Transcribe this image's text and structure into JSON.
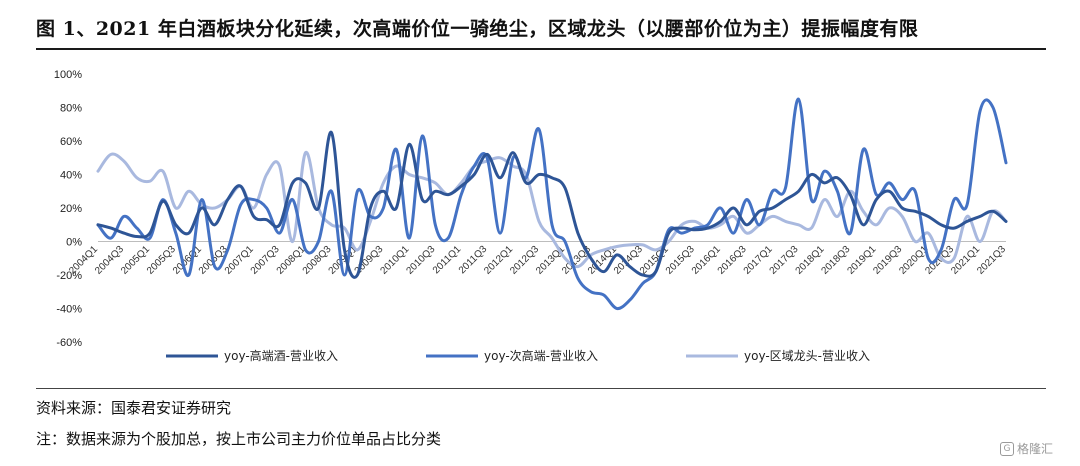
{
  "figure": {
    "title": "图 1、2021 年白酒板块分化延续，次高端价位一骑绝尘，区域龙头（以腰部价位为主）提振幅度有限",
    "source": "资料来源：国泰君安证券研究",
    "note": "注：数据来源为个股加总，按上市公司主力价位单品占比分类",
    "watermark": "格隆汇"
  },
  "chart_data": {
    "type": "line",
    "title": "",
    "xlabel": "",
    "ylabel": "",
    "ylim": [
      -60,
      100
    ],
    "yticks": [
      -60,
      -40,
      -20,
      0,
      20,
      40,
      60,
      80,
      100
    ],
    "ytick_labels": [
      "-60%",
      "-40%",
      "-20%",
      "0%",
      "20%",
      "40%",
      "60%",
      "80%",
      "100%"
    ],
    "grid": false,
    "legend_position": "bottom",
    "x_tick_labels": [
      "2004Q1",
      "2004Q3",
      "2005Q1",
      "2005Q3",
      "2006Q1",
      "2006Q3",
      "2007Q1",
      "2007Q3",
      "2008Q1",
      "2008Q3",
      "2009Q1",
      "2009Q3",
      "2010Q1",
      "2010Q3",
      "2011Q1",
      "2011Q3",
      "2012Q1",
      "2012Q3",
      "2013Q1",
      "2013Q3",
      "2014Q1",
      "2014Q3",
      "2015Q1",
      "2015Q3",
      "2016Q1",
      "2016Q3",
      "2017Q1",
      "2017Q3",
      "2018Q1",
      "2018Q3",
      "2019Q1",
      "2019Q3",
      "2020Q1",
      "2020Q3",
      "2021Q1",
      "2021Q3"
    ],
    "x": [
      "2004Q1",
      "2004Q2",
      "2004Q3",
      "2004Q4",
      "2005Q1",
      "2005Q2",
      "2005Q3",
      "2005Q4",
      "2006Q1",
      "2006Q2",
      "2006Q3",
      "2006Q4",
      "2007Q1",
      "2007Q2",
      "2007Q3",
      "2007Q4",
      "2008Q1",
      "2008Q2",
      "2008Q3",
      "2008Q4",
      "2009Q1",
      "2009Q2",
      "2009Q3",
      "2009Q4",
      "2010Q1",
      "2010Q2",
      "2010Q3",
      "2010Q4",
      "2011Q1",
      "2011Q2",
      "2011Q3",
      "2011Q4",
      "2012Q1",
      "2012Q2",
      "2012Q3",
      "2012Q4",
      "2013Q1",
      "2013Q2",
      "2013Q3",
      "2013Q4",
      "2014Q1",
      "2014Q2",
      "2014Q3",
      "2014Q4",
      "2015Q1",
      "2015Q2",
      "2015Q3",
      "2015Q4",
      "2016Q1",
      "2016Q2",
      "2016Q3",
      "2016Q4",
      "2017Q1",
      "2017Q2",
      "2017Q3",
      "2017Q4",
      "2018Q1",
      "2018Q2",
      "2018Q3",
      "2018Q4",
      "2019Q1",
      "2019Q2",
      "2019Q3",
      "2019Q4",
      "2020Q1",
      "2020Q2",
      "2020Q3",
      "2020Q4",
      "2021Q1",
      "2021Q2",
      "2021Q3"
    ],
    "series": [
      {
        "name": "yoy-高端酒-营业收入",
        "color": "#2e5596",
        "width": 3,
        "values": [
          10,
          8,
          5,
          3,
          5,
          24,
          10,
          5,
          20,
          10,
          25,
          33,
          15,
          13,
          10,
          35,
          35,
          20,
          65,
          -5,
          -20,
          20,
          30,
          20,
          58,
          25,
          30,
          28,
          33,
          40,
          52,
          38,
          53,
          35,
          40,
          38,
          32,
          5,
          -10,
          -18,
          -8,
          -15,
          -20,
          -18,
          5,
          8,
          7,
          8,
          12,
          20,
          10,
          18,
          20,
          25,
          30,
          40,
          35,
          38,
          28,
          10,
          25,
          30,
          20,
          18,
          15,
          10,
          8,
          12,
          15,
          18,
          12
        ]
      },
      {
        "name": "yoy-次高端-营业收入",
        "color": "#4472c4",
        "width": 3,
        "values": [
          10,
          2,
          15,
          8,
          2,
          25,
          5,
          -20,
          25,
          -15,
          -5,
          22,
          25,
          20,
          5,
          25,
          -5,
          0,
          30,
          -20,
          30,
          15,
          20,
          55,
          2,
          63,
          10,
          2,
          28,
          45,
          50,
          5,
          50,
          38,
          67,
          10,
          0,
          -22,
          -30,
          -32,
          -40,
          -35,
          -25,
          -18,
          7,
          5,
          8,
          10,
          20,
          5,
          25,
          10,
          30,
          32,
          85,
          25,
          42,
          30,
          5,
          55,
          28,
          35,
          25,
          30,
          -10,
          -5,
          25,
          22,
          78,
          80,
          47
        ]
      },
      {
        "name": "yoy-区域龙头-营业收入",
        "color": "#a9b9df",
        "width": 3,
        "values": [
          42,
          52,
          48,
          38,
          36,
          42,
          20,
          30,
          22,
          20,
          25,
          33,
          20,
          40,
          45,
          0,
          53,
          20,
          10,
          8,
          -5,
          12,
          35,
          45,
          40,
          38,
          35,
          28,
          35,
          45,
          48,
          50,
          45,
          40,
          12,
          2,
          -10,
          -15,
          -8,
          -5,
          -3,
          -2,
          -2,
          -5,
          0,
          10,
          12,
          8,
          10,
          15,
          5,
          10,
          15,
          12,
          10,
          8,
          25,
          15,
          30,
          18,
          10,
          20,
          15,
          0,
          5,
          -10,
          -10,
          15,
          0,
          18,
          12
        ]
      }
    ]
  }
}
